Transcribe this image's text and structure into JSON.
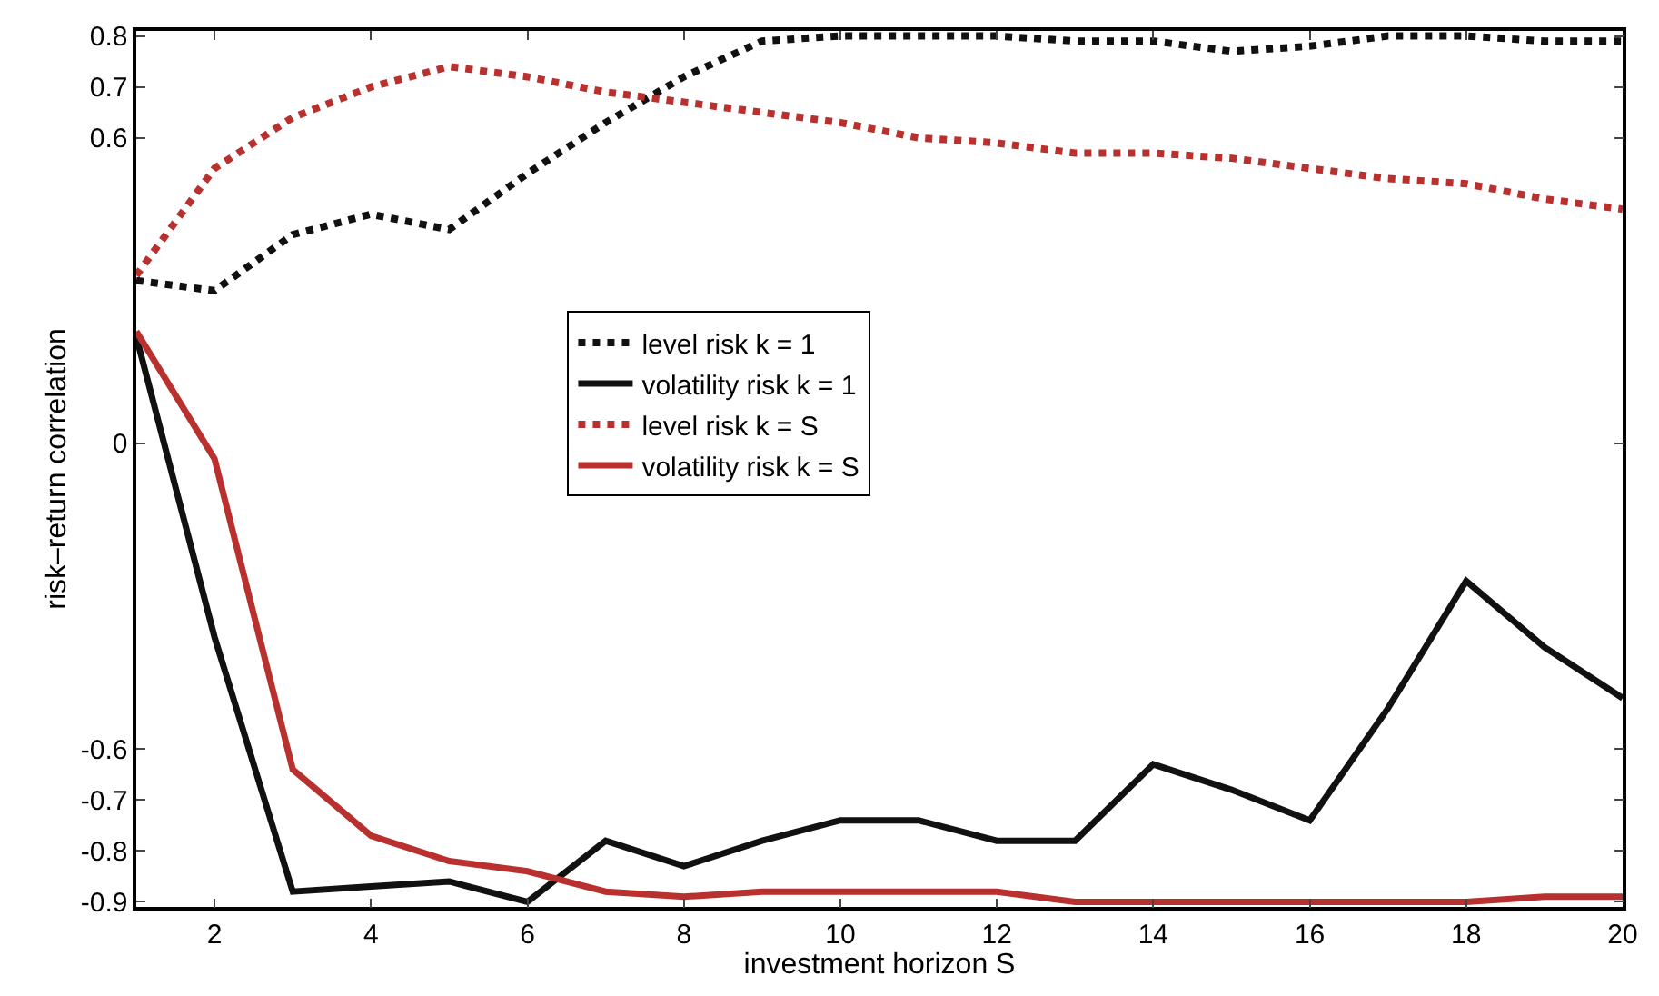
{
  "chart_data": {
    "type": "line",
    "xlabel": "investment horizon S",
    "ylabel": "risk–return correlation",
    "x": [
      1,
      2,
      3,
      4,
      5,
      6,
      7,
      8,
      9,
      10,
      11,
      12,
      13,
      14,
      15,
      16,
      17,
      18,
      19,
      20
    ],
    "xlim": [
      1,
      20
    ],
    "xticks": [
      2,
      4,
      6,
      8,
      10,
      12,
      14,
      16,
      18,
      20
    ],
    "ylim": [
      -0.91,
      0.81
    ],
    "yticks": [
      -0.9,
      -0.8,
      -0.7,
      -0.6,
      0,
      0.6,
      0.7,
      0.8
    ],
    "legend": "center",
    "marker": "none",
    "series": [
      {
        "name": "level risk k = 1",
        "color": "#111111",
        "line_style": "dotted",
        "values": [
          0.32,
          0.3,
          0.41,
          0.45,
          0.42,
          0.53,
          0.63,
          0.72,
          0.79,
          0.8,
          0.8,
          0.8,
          0.79,
          0.79,
          0.77,
          0.78,
          0.8,
          0.8,
          0.79,
          0.79
        ]
      },
      {
        "name": "volatility risk k = 1",
        "color": "#111111",
        "line_style": "solid",
        "values": [
          0.21,
          -0.38,
          -0.88,
          -0.87,
          -0.86,
          -0.9,
          -0.78,
          -0.83,
          -0.78,
          -0.74,
          -0.74,
          -0.78,
          -0.78,
          -0.63,
          -0.68,
          -0.74,
          -0.52,
          -0.27,
          -0.4,
          -0.5
        ]
      },
      {
        "name": "level risk k = S",
        "color": "#b8312f",
        "line_style": "dotted",
        "values": [
          0.33,
          0.54,
          0.64,
          0.7,
          0.74,
          0.72,
          0.69,
          0.67,
          0.65,
          0.63,
          0.6,
          0.59,
          0.57,
          0.57,
          0.56,
          0.54,
          0.52,
          0.51,
          0.48,
          0.46
        ]
      },
      {
        "name": "volatility risk k = S",
        "color": "#b8312f",
        "line_style": "solid",
        "values": [
          0.22,
          -0.03,
          -0.64,
          -0.77,
          -0.82,
          -0.84,
          -0.88,
          -0.89,
          -0.88,
          -0.88,
          -0.88,
          -0.88,
          -0.9,
          -0.9,
          -0.9,
          -0.9,
          -0.9,
          -0.9,
          -0.89,
          -0.89
        ]
      }
    ]
  }
}
